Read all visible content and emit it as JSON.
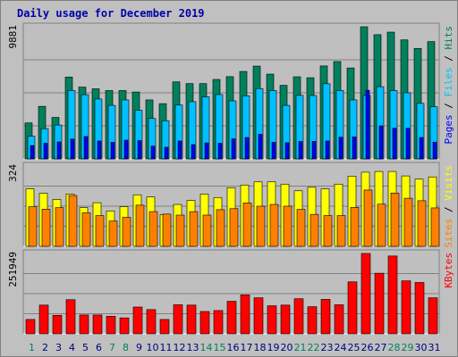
{
  "title": "Daily usage for December 2019",
  "colors": {
    "background": "#c0c0c0",
    "panel": "#bfbfbf",
    "hits": "#00805c",
    "files": "#00c0ff",
    "pages": "#0000ff",
    "visits": "#ffff00",
    "sites": "#ff8000",
    "kbytes": "#ff0000",
    "weekday_label": "#000080",
    "weekend_label": "#00805c"
  },
  "chart_data": {
    "type": "bar",
    "categories": [
      "1",
      "2",
      "3",
      "4",
      "5",
      "6",
      "7",
      "8",
      "9",
      "10",
      "11",
      "12",
      "13",
      "14",
      "15",
      "16",
      "17",
      "18",
      "19",
      "20",
      "21",
      "22",
      "23",
      "24",
      "25",
      "26",
      "27",
      "28",
      "29",
      "30",
      "31"
    ],
    "weekend_days": [
      "1",
      "7",
      "8",
      "14",
      "15",
      "21",
      "22",
      "28",
      "29"
    ],
    "panels": [
      {
        "id": "hits-files-pages",
        "ymax_label": "9881",
        "ymax": 9881,
        "legend": [
          "Pages",
          "Files",
          "Hits"
        ],
        "series": [
          {
            "name": "Hits",
            "values": [
              2690,
              3930,
              3100,
              6120,
              5370,
              5240,
              5110,
              5110,
              5000,
              4410,
              4130,
              5760,
              5630,
              5630,
              5940,
              6150,
              6540,
              6940,
              6340,
              5500,
              6140,
              6070,
              6950,
              7280,
              6800,
              9881,
              9290,
              9480,
              8900,
              8260,
              8770
            ]
          },
          {
            "name": "Files",
            "values": [
              1700,
              2260,
              2530,
              5110,
              4800,
              4480,
              4000,
              4410,
              3640,
              3020,
              2850,
              4030,
              4280,
              4640,
              4810,
              4340,
              4720,
              5260,
              5110,
              4000,
              4750,
              4740,
              5620,
              5120,
              4410,
              4740,
              5400,
              5110,
              4940,
              4150,
              3900
            ]
          },
          {
            "name": "Pages",
            "values": [
              1000,
              1170,
              1270,
              1480,
              1670,
              1340,
              1240,
              1400,
              1370,
              950,
              870,
              1340,
              1070,
              1200,
              1170,
              1500,
              1600,
              1840,
              1240,
              1210,
              1300,
              1310,
              1340,
              1620,
              1640,
              5130,
              2470,
              2290,
              2290,
              1600,
              1250
            ]
          }
        ]
      },
      {
        "id": "visits-sites",
        "ymax_label": "324",
        "ymax": 324,
        "legend": [
          "Sites",
          "Visits"
        ],
        "series": [
          {
            "name": "Visits",
            "values": [
              232,
              214,
              189,
              211,
              156,
              176,
              143,
              160,
              208,
              199,
              128,
              169,
              185,
              211,
              197,
              236,
              247,
              260,
              260,
              251,
              224,
              238,
              232,
              251,
              283,
              299,
              302,
              302,
              284,
              271,
              280
            ]
          },
          {
            "name": "Sites",
            "values": [
              160,
              150,
              156,
              205,
              135,
              124,
              102,
              117,
              166,
              140,
              130,
              126,
              140,
              126,
              148,
              152,
              175,
              162,
              169,
              162,
              149,
              129,
              124,
              124,
              157,
              227,
              170,
              215,
              194,
              184,
              155
            ]
          }
        ]
      },
      {
        "id": "kbytes",
        "ymax_label": "251949",
        "ymax": 251949,
        "legend": [
          "KBytes"
        ],
        "series": [
          {
            "name": "KBytes",
            "values": [
              45000,
              90000,
              58000,
              107000,
              59000,
              59000,
              55000,
              50000,
              84000,
              76000,
              45000,
              91000,
              90000,
              70000,
              73000,
              102000,
              122000,
              113000,
              88000,
              90000,
              110000,
              85000,
              108000,
              91000,
              163000,
              251949,
              190000,
              244000,
              166000,
              161000,
              113000
            ]
          }
        ]
      }
    ]
  }
}
